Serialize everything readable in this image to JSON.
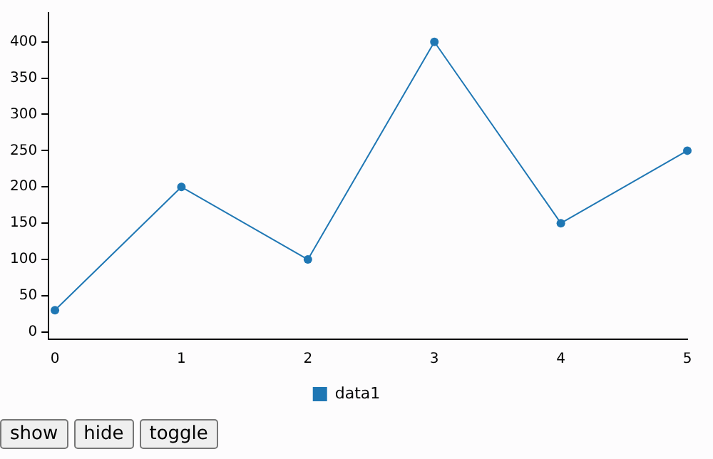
{
  "chart_data": {
    "type": "line",
    "x": [
      0,
      1,
      2,
      3,
      4,
      5
    ],
    "series": [
      {
        "name": "data1",
        "color": "#1f77b4",
        "values": [
          30,
          200,
          100,
          400,
          150,
          250
        ]
      }
    ],
    "xlim": [
      -0.05,
      5
    ],
    "xticks": [
      0,
      1,
      2,
      3,
      4,
      5
    ],
    "ylim": [
      -10,
      440
    ],
    "yticks": [
      0,
      50,
      100,
      150,
      200,
      250,
      300,
      350,
      400
    ],
    "grid": false,
    "legend": "bottom",
    "marker": "circle",
    "line_style": "solid",
    "annotations": [
      "show",
      "hide",
      "toggle"
    ]
  }
}
